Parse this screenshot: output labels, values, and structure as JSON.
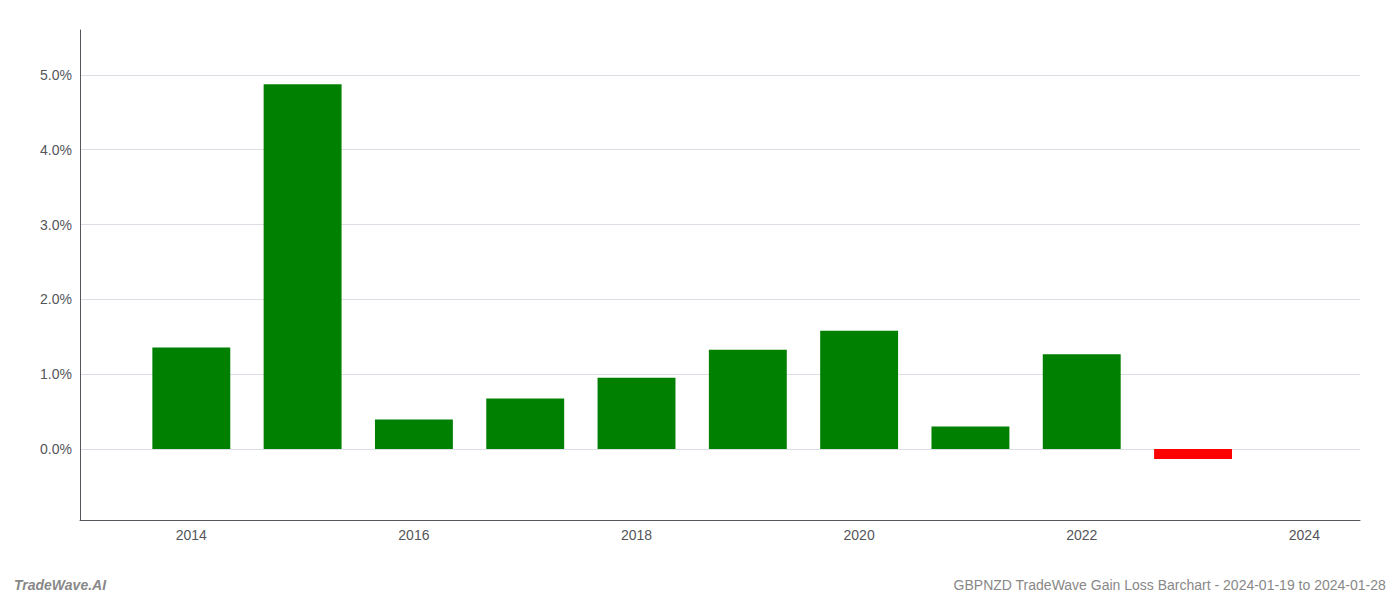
{
  "chart_data": {
    "type": "bar",
    "x": [
      2014,
      2015,
      2016,
      2017,
      2018,
      2019,
      2020,
      2021,
      2022,
      2023
    ],
    "values": [
      0.01355,
      0.04875,
      0.00395,
      0.00675,
      0.0095,
      0.01325,
      0.0158,
      0.003,
      0.01265,
      -0.00135
    ],
    "colors": [
      "#008000",
      "#008000",
      "#008000",
      "#008000",
      "#008000",
      "#008000",
      "#008000",
      "#008000",
      "#008000",
      "#ff0000"
    ],
    "xlim": [
      2013.0,
      2024.5
    ],
    "xticks": [
      2014,
      2016,
      2018,
      2020,
      2022,
      2024
    ],
    "ylim": [
      -0.0095,
      0.056
    ],
    "yticks": [
      {
        "value": 0.0,
        "label": "0.0%"
      },
      {
        "value": 0.01,
        "label": "1.0%"
      },
      {
        "value": 0.02,
        "label": "2.0%"
      },
      {
        "value": 0.03,
        "label": "3.0%"
      },
      {
        "value": 0.04,
        "label": "4.0%"
      },
      {
        "value": 0.05,
        "label": "5.0%"
      }
    ],
    "grid": true,
    "annotations": [
      "TradeWave.AI",
      "GBPNZD TradeWave Gain Loss Barchart - 2024-01-19 to 2024-01-28"
    ]
  }
}
